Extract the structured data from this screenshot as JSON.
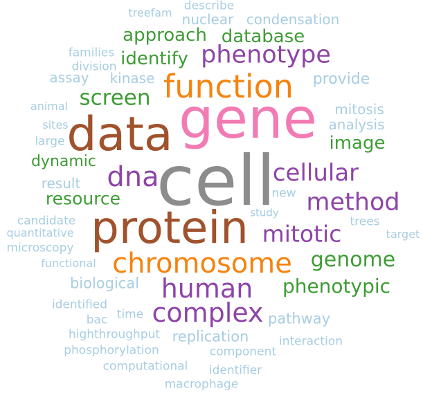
{
  "palette": {
    "gray": "#8c8c8c",
    "pink": "#f27bb3",
    "brown": "#a0522d",
    "orange": "#f5830d",
    "purple": "#8e44a8",
    "green": "#3e9c35",
    "light_blue": "#a8cde2"
  },
  "words": [
    {
      "text": "cell",
      "color": "gray"
    },
    {
      "text": "gene",
      "color": "pink"
    },
    {
      "text": "data",
      "color": "brown"
    },
    {
      "text": "protein",
      "color": "brown"
    },
    {
      "text": "function",
      "color": "orange"
    },
    {
      "text": "chromosome",
      "color": "orange"
    },
    {
      "text": "phenotype",
      "color": "purple"
    },
    {
      "text": "human",
      "color": "purple"
    },
    {
      "text": "complex",
      "color": "purple"
    },
    {
      "text": "dna",
      "color": "purple"
    },
    {
      "text": "cellular",
      "color": "purple"
    },
    {
      "text": "method",
      "color": "purple"
    },
    {
      "text": "mitotic",
      "color": "purple"
    },
    {
      "text": "approach",
      "color": "green"
    },
    {
      "text": "database",
      "color": "green"
    },
    {
      "text": "identify",
      "color": "green"
    },
    {
      "text": "screen",
      "color": "green"
    },
    {
      "text": "image",
      "color": "green"
    },
    {
      "text": "dynamic",
      "color": "green"
    },
    {
      "text": "resource",
      "color": "green"
    },
    {
      "text": "genome",
      "color": "green"
    },
    {
      "text": "phenotypic",
      "color": "green"
    },
    {
      "text": "describe",
      "color": "light_blue"
    },
    {
      "text": "treefam",
      "color": "light_blue"
    },
    {
      "text": "nuclear",
      "color": "light_blue"
    },
    {
      "text": "condensation",
      "color": "light_blue"
    },
    {
      "text": "families",
      "color": "light_blue"
    },
    {
      "text": "division",
      "color": "light_blue"
    },
    {
      "text": "assay",
      "color": "light_blue"
    },
    {
      "text": "kinase",
      "color": "light_blue"
    },
    {
      "text": "provide",
      "color": "light_blue"
    },
    {
      "text": "animal",
      "color": "light_blue"
    },
    {
      "text": "mitosis",
      "color": "light_blue"
    },
    {
      "text": "sites",
      "color": "light_blue"
    },
    {
      "text": "analysis",
      "color": "light_blue"
    },
    {
      "text": "large",
      "color": "light_blue"
    },
    {
      "text": "result",
      "color": "light_blue"
    },
    {
      "text": "new",
      "color": "light_blue"
    },
    {
      "text": "study",
      "color": "light_blue"
    },
    {
      "text": "candidate",
      "color": "light_blue"
    },
    {
      "text": "trees",
      "color": "light_blue"
    },
    {
      "text": "quantitative",
      "color": "light_blue"
    },
    {
      "text": "target",
      "color": "light_blue"
    },
    {
      "text": "microscopy",
      "color": "light_blue"
    },
    {
      "text": "functional",
      "color": "light_blue"
    },
    {
      "text": "biological",
      "color": "light_blue"
    },
    {
      "text": "identified",
      "color": "light_blue"
    },
    {
      "text": "time",
      "color": "light_blue"
    },
    {
      "text": "bac",
      "color": "light_blue"
    },
    {
      "text": "pathway",
      "color": "light_blue"
    },
    {
      "text": "highthroughput",
      "color": "light_blue"
    },
    {
      "text": "replication",
      "color": "light_blue"
    },
    {
      "text": "interaction",
      "color": "light_blue"
    },
    {
      "text": "phosphorylation",
      "color": "light_blue"
    },
    {
      "text": "component",
      "color": "light_blue"
    },
    {
      "text": "computational",
      "color": "light_blue"
    },
    {
      "text": "identifier",
      "color": "light_blue"
    },
    {
      "text": "macrophage",
      "color": "light_blue"
    }
  ]
}
